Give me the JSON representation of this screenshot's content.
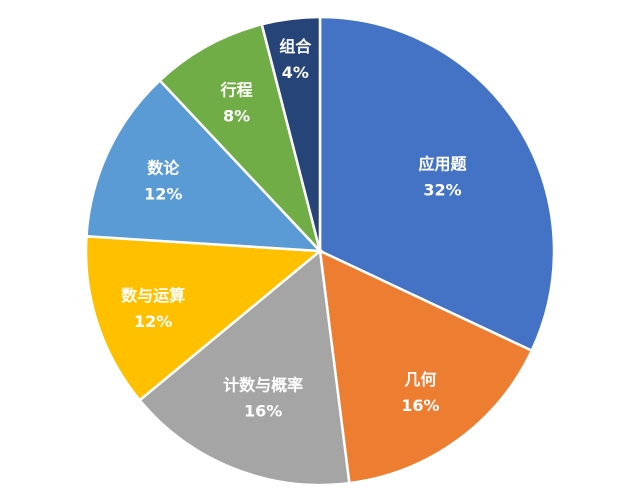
{
  "chart_data": {
    "type": "pie",
    "title": "",
    "start": "12 o'clock, clockwise",
    "legend": "none",
    "slices": [
      {
        "label": "应用题",
        "value": 32,
        "text": "32%",
        "color": "#4472C4"
      },
      {
        "label": "几何",
        "value": 16,
        "text": "16%",
        "color": "#ED7D31"
      },
      {
        "label": "计数与概率",
        "value": 16,
        "text": "16%",
        "color": "#A5A5A5"
      },
      {
        "label": "数与运算",
        "value": 12,
        "text": "12%",
        "color": "#FFC000"
      },
      {
        "label": "数论",
        "value": 12,
        "text": "12%",
        "color": "#5B9BD5"
      },
      {
        "label": "行程",
        "value": 8,
        "text": "8%",
        "color": "#70AD47"
      },
      {
        "label": "组合",
        "value": 4,
        "text": "4%",
        "color": "#264478"
      }
    ]
  }
}
